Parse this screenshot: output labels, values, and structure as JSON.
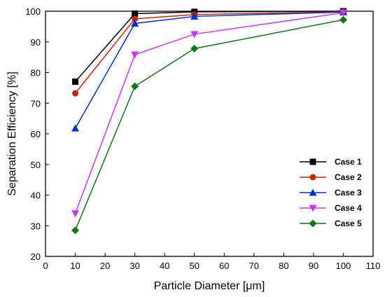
{
  "chart_data": {
    "type": "line",
    "title": "",
    "xlabel": "Particle Diameter [μm]",
    "ylabel": "Separation Efficiency [%]",
    "xlim": [
      0,
      110
    ],
    "ylim": [
      20,
      100
    ],
    "xticks": [
      0,
      10,
      20,
      30,
      40,
      50,
      60,
      70,
      80,
      90,
      100,
      110
    ],
    "yticks": [
      20,
      30,
      40,
      50,
      60,
      70,
      80,
      90,
      100
    ],
    "grid": false,
    "legend_position": "right",
    "x": [
      10,
      30,
      50,
      100
    ],
    "series": [
      {
        "name": "Case 1",
        "values": [
          77.0,
          99.2,
          99.8,
          100.0
        ],
        "color": "#000000",
        "marker": "square"
      },
      {
        "name": "Case 2",
        "values": [
          73.2,
          97.5,
          98.9,
          99.8
        ],
        "color": "#cc2200",
        "marker": "circle"
      },
      {
        "name": "Case 3",
        "values": [
          61.8,
          96.0,
          98.3,
          99.7
        ],
        "color": "#0033cc",
        "marker": "triangle-up"
      },
      {
        "name": "Case 4",
        "values": [
          34.0,
          85.8,
          92.5,
          99.5
        ],
        "color": "#cc33ff",
        "marker": "triangle-down"
      },
      {
        "name": "Case 5",
        "values": [
          28.5,
          75.5,
          87.8,
          97.2
        ],
        "color": "#117711",
        "marker": "diamond"
      }
    ]
  }
}
